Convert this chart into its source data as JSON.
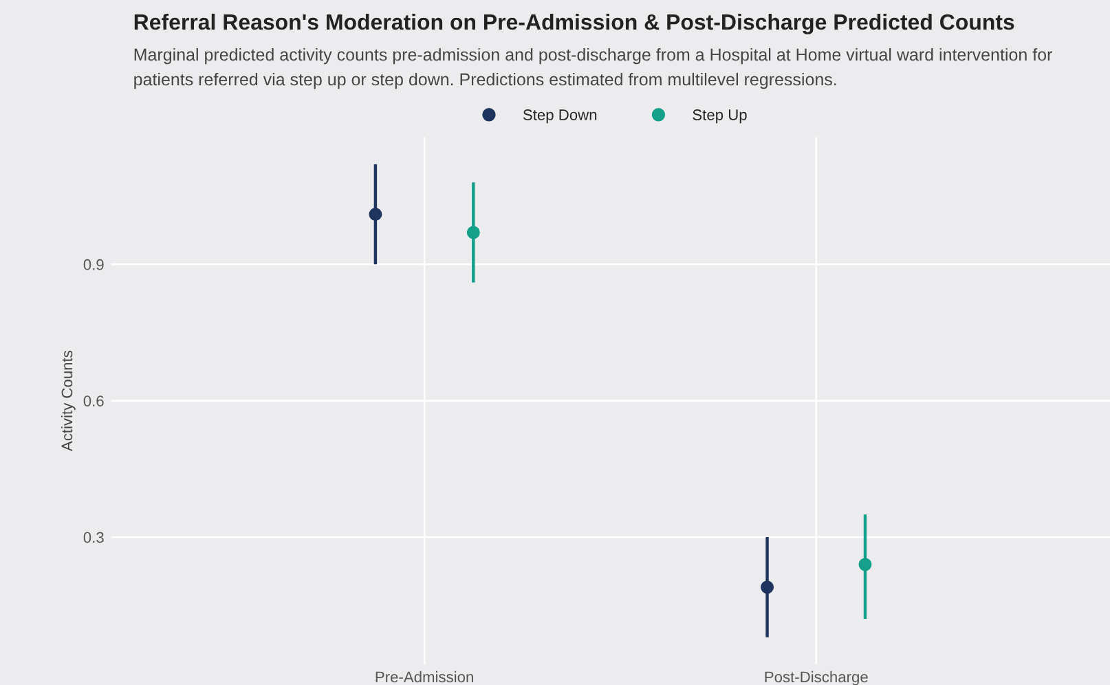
{
  "chart_data": {
    "type": "scatter",
    "title": "Referral Reason's Moderation on Pre-Admission & Post-Discharge Predicted Counts",
    "subtitle": "Marginal predicted activity counts pre-admission and post-discharge from a Hospital at Home virtual ward intervention for patients referred via step up or step down. Predictions estimated from multilevel regressions.",
    "ylabel": "Activity Counts",
    "categories": [
      "Pre-Admission",
      "Post-Discharge"
    ],
    "series": [
      {
        "name": "Step Down",
        "color": "#1f3560",
        "values": [
          1.01,
          0.19
        ],
        "errors": [
          [
            0.9,
            1.12
          ],
          [
            0.08,
            0.3
          ]
        ]
      },
      {
        "name": "Step Up",
        "color": "#14a08a",
        "values": [
          0.97,
          0.24
        ],
        "errors": [
          [
            0.86,
            1.08
          ],
          [
            0.12,
            0.35
          ]
        ]
      }
    ],
    "ylim": [
      0.02,
      1.18
    ],
    "yticks": [
      0.3,
      0.6,
      0.9
    ],
    "grid": true,
    "legend": "top",
    "marker": "circle"
  }
}
